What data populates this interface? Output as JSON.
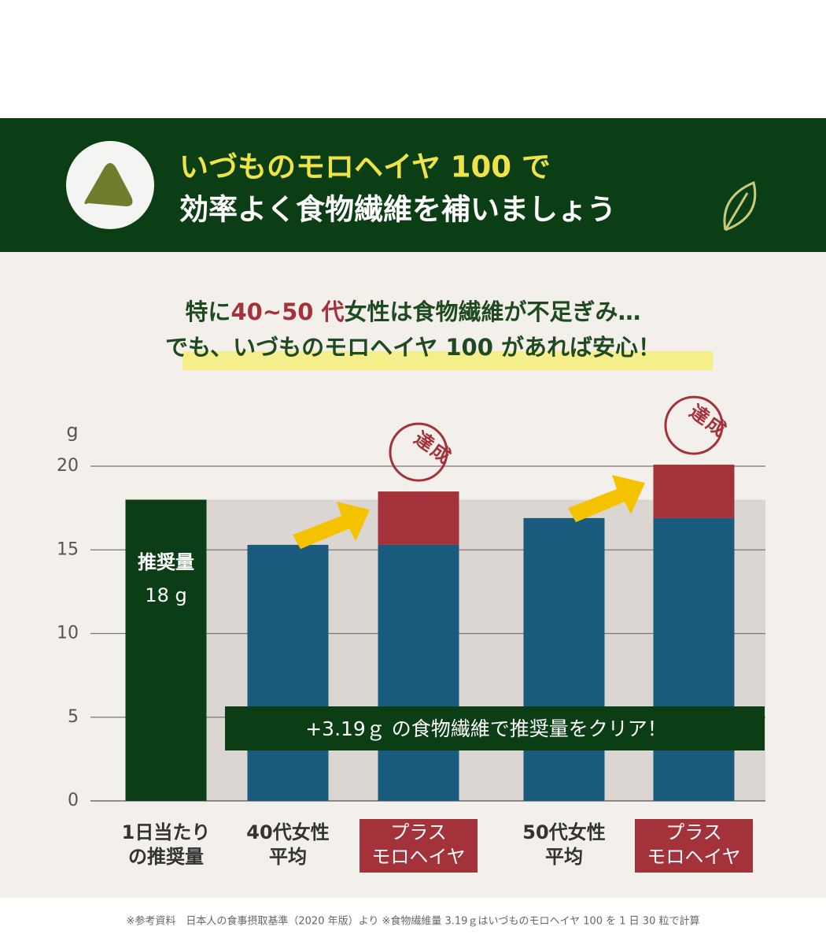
{
  "header": {
    "title": [
      "いづものモロヘイヤ 100 で",
      "効率よく食物繊維を補いましょう"
    ]
  },
  "lead": {
    "line1": [
      "特に",
      "40~50 代",
      "女性は食物繊維が不足ぎみ…"
    ],
    "line2": [
      "でも、",
      "いづものモロヘイヤ 100 があれば安心！"
    ]
  },
  "chart_data": {
    "type": "bar",
    "stacked": true,
    "categories": [
      [
        "1日当たり",
        "の推奨量"
      ],
      [
        "40代女性",
        "平均"
      ],
      [
        "プラス",
        "モロヘイヤ"
      ],
      [
        "50代女性",
        "平均"
      ],
      [
        "プラス",
        "モロヘイヤ"
      ]
    ],
    "series": [
      {
        "name": "推奨量",
        "color": "#0b3d16",
        "values": [
          18,
          null,
          null,
          null,
          null
        ],
        "value_labels": [
          "18 g",
          null,
          null,
          null,
          null
        ]
      },
      {
        "color": "#1a5b7d",
        "values": [
          null,
          15.3,
          15.3,
          16.9,
          16.9
        ]
      },
      {
        "color": "#a3323b",
        "values": [
          null,
          null,
          3.19,
          null,
          3.19
        ]
      }
    ],
    "y_unit": "g",
    "ylim": [
      0,
      20
    ],
    "yticks": [
      0,
      5,
      10,
      15,
      20
    ],
    "grid": true,
    "annotation": "+3.19ｇ の食物繊維で推奨量をクリア！",
    "stamp": "達成"
  },
  "footnote": "※参考資料　日本人の食事摂取基準（2020 年版）より ※食物繊維量 3.19ｇはいづものモロヘイヤ 100 を 1 日 30 粒で計算"
}
